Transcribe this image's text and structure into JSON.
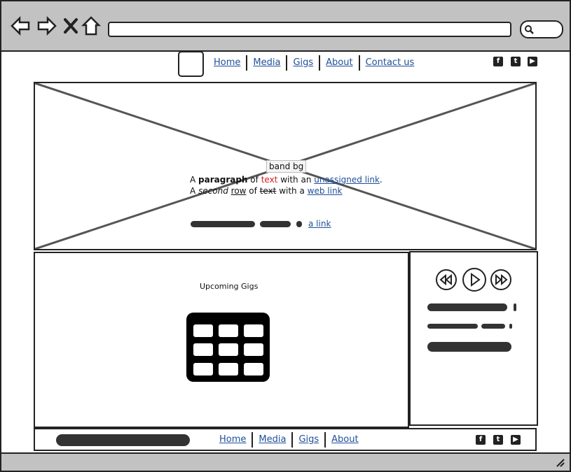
{
  "header": {
    "nav": [
      "Home",
      "Media",
      "Gigs",
      "About",
      "Contact us"
    ],
    "social": [
      "f",
      "t",
      "▶"
    ]
  },
  "hero": {
    "label": "band bg",
    "line1": {
      "a": "A ",
      "b": "paragraph",
      "c": " of ",
      "d": "text",
      "e": " with an ",
      "f": "unassigned link",
      "g": "."
    },
    "line2": {
      "a": "A ",
      "b": "second",
      "c": " ",
      "d": "row",
      "e": " of ",
      "f": "text",
      "g": " with a ",
      "h": "web link"
    },
    "link3": "a link"
  },
  "main": {
    "gigs_title": "Upcoming Gigs"
  },
  "footer": {
    "nav": [
      "Home",
      "Media",
      "Gigs",
      "About"
    ]
  },
  "colors": {
    "link": "#1f4f99",
    "chrome": "#c2c2c2",
    "accent_red": "#d42020"
  },
  "icons": [
    "back-icon",
    "forward-icon",
    "close-icon",
    "home-icon",
    "search-icon",
    "facebook-icon",
    "twitter-icon",
    "youtube-icon",
    "rewind-icon",
    "play-icon",
    "fast-forward-icon",
    "table-icon",
    "resize-icon"
  ]
}
